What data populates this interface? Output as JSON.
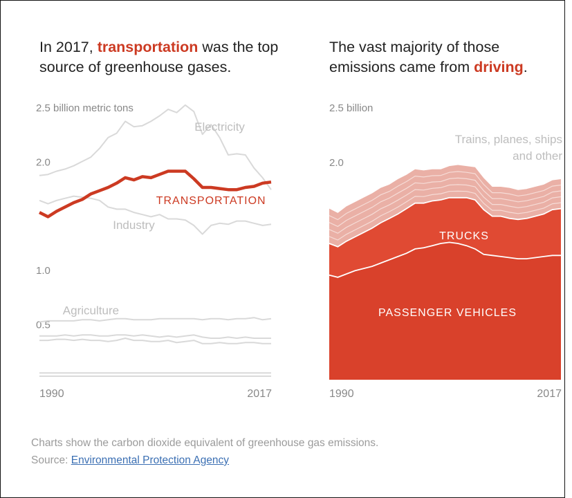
{
  "left_headline": {
    "pre": "In 2017, ",
    "highlight": "transportation",
    "post": " was the top source of greenhouse gases."
  },
  "right_headline": {
    "pre": "The vast majority of those emissions came from ",
    "highlight": "driving",
    "post": "."
  },
  "footer": {
    "note": "Charts show the carbon dioxide equivalent of greenhouse gas emissions.",
    "source_prefix": "Source: ",
    "source_link": "Environmental Protection Agency"
  },
  "colors": {
    "highlight": "#cc3a22",
    "muted_line": "#d9d9d9",
    "muted_text": "#bdbdbd",
    "axis_text": "#888888",
    "passenger": "#d9412b",
    "trucks": "#e04a33",
    "other": "#eab0a6"
  },
  "chart_data": [
    {
      "type": "line",
      "ylabel": "billion metric tons",
      "ylim": [
        0,
        2.5
      ],
      "y_ticks": [
        {
          "value": 2.5,
          "label": "2.5 billion metric tons"
        },
        {
          "value": 2.0,
          "label": "2.0"
        },
        {
          "value": 1.0,
          "label": "1.0"
        },
        {
          "value": 0.5,
          "label": "0.5"
        }
      ],
      "x_labels": [
        "1990",
        "2017"
      ],
      "x": [
        1990,
        1991,
        1992,
        1993,
        1994,
        1995,
        1996,
        1997,
        1998,
        1999,
        2000,
        2001,
        2002,
        2003,
        2004,
        2005,
        2006,
        2007,
        2008,
        2009,
        2010,
        2011,
        2012,
        2013,
        2014,
        2015,
        2016,
        2017
      ],
      "series": [
        {
          "name": "Electricity",
          "highlight": false,
          "label_at": 2011,
          "label_dy": -10,
          "values": [
            1.87,
            1.88,
            1.91,
            1.93,
            1.96,
            2.0,
            2.04,
            2.12,
            2.22,
            2.26,
            2.37,
            2.32,
            2.33,
            2.37,
            2.42,
            2.48,
            2.45,
            2.52,
            2.46,
            2.25,
            2.34,
            2.22,
            2.06,
            2.07,
            2.06,
            1.94,
            1.85,
            1.74
          ]
        },
        {
          "name": "TRANSPORTATION",
          "highlight": true,
          "label_at": 2010,
          "label_dy": 24,
          "values": [
            1.53,
            1.49,
            1.54,
            1.58,
            1.62,
            1.65,
            1.7,
            1.73,
            1.76,
            1.8,
            1.85,
            1.83,
            1.86,
            1.85,
            1.88,
            1.91,
            1.91,
            1.91,
            1.84,
            1.76,
            1.76,
            1.75,
            1.74,
            1.74,
            1.76,
            1.77,
            1.8,
            1.81
          ]
        },
        {
          "name": "Industry",
          "highlight": false,
          "label_at": 2001,
          "label_dy": 24,
          "values": [
            1.64,
            1.61,
            1.64,
            1.66,
            1.68,
            1.67,
            1.66,
            1.64,
            1.58,
            1.56,
            1.56,
            1.53,
            1.51,
            1.49,
            1.51,
            1.47,
            1.47,
            1.46,
            1.41,
            1.33,
            1.41,
            1.43,
            1.42,
            1.45,
            1.45,
            1.43,
            1.41,
            1.42
          ]
        },
        {
          "name": "Agriculture",
          "highlight": false,
          "label_at": 1996,
          "label_dy": -8,
          "values": [
            0.52,
            0.53,
            0.53,
            0.53,
            0.53,
            0.54,
            0.54,
            0.53,
            0.54,
            0.55,
            0.55,
            0.54,
            0.54,
            0.54,
            0.55,
            0.55,
            0.55,
            0.55,
            0.55,
            0.54,
            0.55,
            0.55,
            0.54,
            0.55,
            0.55,
            0.56,
            0.54,
            0.55
          ]
        },
        {
          "name": "",
          "highlight": false,
          "values": [
            0.39,
            0.39,
            0.39,
            0.4,
            0.39,
            0.4,
            0.4,
            0.39,
            0.39,
            0.4,
            0.4,
            0.39,
            0.4,
            0.39,
            0.38,
            0.39,
            0.38,
            0.39,
            0.4,
            0.38,
            0.37,
            0.37,
            0.38,
            0.37,
            0.38,
            0.37,
            0.37,
            0.37
          ]
        },
        {
          "name": "",
          "highlight": false,
          "values": [
            0.35,
            0.35,
            0.36,
            0.36,
            0.35,
            0.36,
            0.35,
            0.35,
            0.34,
            0.35,
            0.37,
            0.35,
            0.35,
            0.34,
            0.34,
            0.35,
            0.33,
            0.34,
            0.35,
            0.32,
            0.32,
            0.33,
            0.32,
            0.32,
            0.33,
            0.33,
            0.32,
            0.32
          ]
        },
        {
          "name": "",
          "highlight": false,
          "values": [
            0.05,
            0.05,
            0.05,
            0.05,
            0.05,
            0.05,
            0.05,
            0.05,
            0.05,
            0.05,
            0.05,
            0.05,
            0.05,
            0.05,
            0.05,
            0.05,
            0.05,
            0.05,
            0.05,
            0.05,
            0.05,
            0.05,
            0.05,
            0.05,
            0.05,
            0.05,
            0.05,
            0.05
          ]
        },
        {
          "name": "",
          "highlight": false,
          "values": [
            0.02,
            0.02,
            0.02,
            0.02,
            0.02,
            0.02,
            0.02,
            0.02,
            0.02,
            0.02,
            0.02,
            0.02,
            0.02,
            0.02,
            0.02,
            0.02,
            0.02,
            0.02,
            0.02,
            0.02,
            0.02,
            0.02,
            0.02,
            0.02,
            0.02,
            0.02,
            0.02,
            0.02
          ]
        }
      ]
    },
    {
      "type": "area",
      "stacked": true,
      "ylabel": "billion",
      "ylim": [
        0,
        2.5
      ],
      "y_ticks": [
        {
          "value": 2.5,
          "label": "2.5 billion"
        },
        {
          "value": 2.0,
          "label": "2.0"
        }
      ],
      "x_labels": [
        "1990",
        "2017"
      ],
      "x": [
        1990,
        1991,
        1992,
        1993,
        1994,
        1995,
        1996,
        1997,
        1998,
        1999,
        2000,
        2001,
        2002,
        2003,
        2004,
        2005,
        2006,
        2007,
        2008,
        2009,
        2010,
        2011,
        2012,
        2013,
        2014,
        2015,
        2016,
        2017
      ],
      "series": [
        {
          "name": "PASSENGER VEHICLES",
          "values": [
            0.96,
            0.94,
            0.97,
            1.0,
            1.02,
            1.04,
            1.07,
            1.1,
            1.13,
            1.16,
            1.2,
            1.21,
            1.23,
            1.25,
            1.26,
            1.25,
            1.23,
            1.2,
            1.15,
            1.14,
            1.13,
            1.12,
            1.11,
            1.11,
            1.12,
            1.13,
            1.14,
            1.14
          ]
        },
        {
          "name": "TRUCKS",
          "values": [
            0.29,
            0.28,
            0.3,
            0.31,
            0.33,
            0.35,
            0.37,
            0.38,
            0.39,
            0.41,
            0.42,
            0.41,
            0.41,
            0.4,
            0.41,
            0.42,
            0.44,
            0.45,
            0.41,
            0.36,
            0.37,
            0.36,
            0.36,
            0.37,
            0.38,
            0.39,
            0.42,
            0.43
          ]
        },
        {
          "name": "Trains, planes, ships and other",
          "values": [
            0.32,
            0.31,
            0.32,
            0.32,
            0.32,
            0.32,
            0.32,
            0.31,
            0.32,
            0.31,
            0.31,
            0.3,
            0.29,
            0.28,
            0.29,
            0.3,
            0.29,
            0.3,
            0.29,
            0.27,
            0.27,
            0.28,
            0.27,
            0.27,
            0.27,
            0.27,
            0.27,
            0.27
          ]
        }
      ],
      "sub_bands": 4
    }
  ]
}
